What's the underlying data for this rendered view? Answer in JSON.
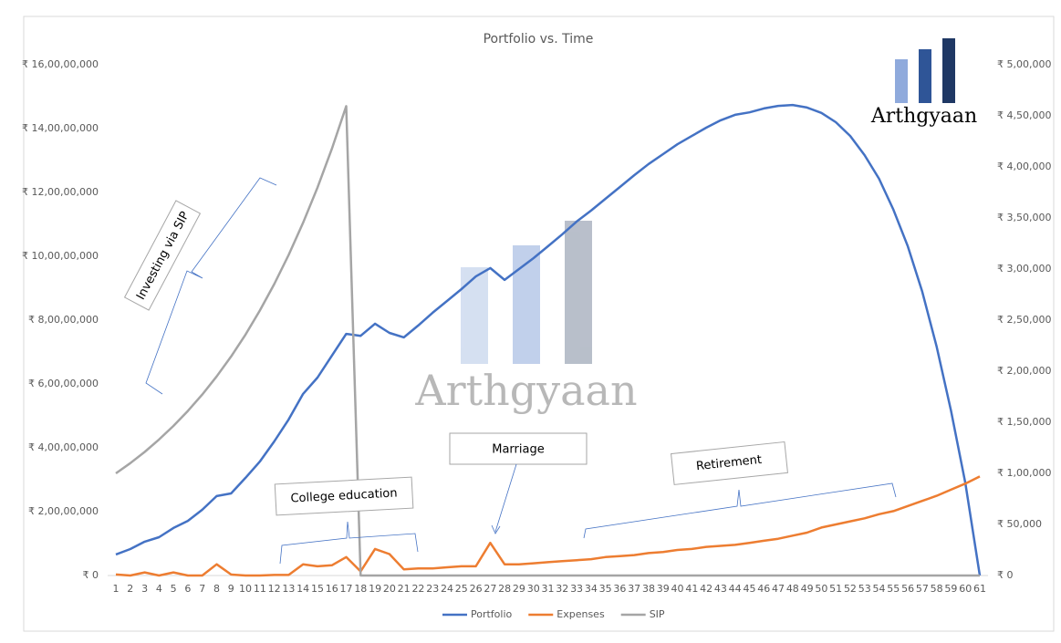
{
  "chart_data": {
    "type": "line",
    "title": "Portfolio vs. Time",
    "categories": [
      1,
      2,
      3,
      4,
      5,
      6,
      7,
      8,
      9,
      10,
      11,
      12,
      13,
      14,
      15,
      16,
      17,
      18,
      19,
      20,
      21,
      22,
      23,
      24,
      25,
      26,
      27,
      28,
      29,
      30,
      31,
      32,
      33,
      34,
      35,
      36,
      37,
      38,
      39,
      40,
      41,
      42,
      43,
      44,
      45,
      46,
      47,
      48,
      49,
      50,
      51,
      52,
      53,
      54,
      55,
      56,
      57,
      58,
      59,
      60,
      61
    ],
    "series": [
      {
        "name": "Portfolio",
        "color": "#4472c4",
        "values": [
          6600000,
          8300000,
          10600000,
          12000000,
          14900000,
          17100000,
          20600000,
          24900000,
          25700000,
          30600000,
          35700000,
          42000000,
          48900000,
          56900000,
          62000000,
          68900000,
          75700000,
          75100000,
          78900000,
          76000000,
          74600000,
          78300000,
          82300000,
          86000000,
          89700000,
          93700000,
          96300000,
          92600000,
          96000000,
          99400000,
          103100000,
          106900000,
          110900000,
          114300000,
          118000000,
          121700000,
          125400000,
          128900000,
          132000000,
          135100000,
          137700000,
          140300000,
          142600000,
          144300000,
          145100000,
          146300000,
          147100000,
          147400000,
          146600000,
          144900000,
          142000000,
          137700000,
          131700000,
          124300000,
          114600000,
          103100000,
          88900000,
          71700000,
          51700000,
          28900000,
          0
        ]
      },
      {
        "name": "Expenses",
        "color": "#ed7d31",
        "axis": "y2",
        "values": [
          1000,
          0,
          3000,
          0,
          3000,
          0,
          0,
          11000,
          1000,
          0,
          0,
          500,
          500,
          11000,
          9000,
          10000,
          18000,
          4000,
          26000,
          21000,
          6000,
          7000,
          7000,
          8000,
          9000,
          9000,
          32000,
          11000,
          11000,
          12000,
          13000,
          14000,
          15000,
          16000,
          18000,
          19000,
          20000,
          22000,
          23000,
          25000,
          26000,
          28000,
          29000,
          30000,
          32000,
          34000,
          36000,
          39000,
          42000,
          47000,
          50000,
          53000,
          56000,
          60000,
          63000,
          68000,
          73000,
          78000,
          84000,
          90000,
          97000
        ]
      },
      {
        "name": "SIP",
        "color": "#a5a5a5",
        "axis": "y2",
        "values": [
          100000,
          110000,
          121000,
          133100,
          146410,
          161051,
          177156,
          194872,
          214359,
          235795,
          259374,
          285312,
          313843,
          345227,
          379750,
          417725,
          459497,
          0,
          0,
          0,
          0,
          0,
          0,
          0,
          0,
          0,
          0,
          0,
          0,
          0,
          0,
          0,
          0,
          0,
          0,
          0,
          0,
          0,
          0,
          0,
          0,
          0,
          0,
          0,
          0,
          0,
          0,
          0,
          0,
          0,
          0,
          0,
          0,
          0,
          0,
          0,
          0,
          0,
          0,
          0,
          0
        ]
      }
    ],
    "ylim": [
      0,
      160000000
    ],
    "yticks": [
      {
        "value": 0,
        "label": "₹ 0"
      },
      {
        "value": 20000000,
        "label": "₹ 2,00,00,000"
      },
      {
        "value": 40000000,
        "label": "₹ 4,00,00,000"
      },
      {
        "value": 60000000,
        "label": "₹ 6,00,00,000"
      },
      {
        "value": 80000000,
        "label": "₹ 8,00,00,000"
      },
      {
        "value": 100000000,
        "label": "₹ 10,00,00,000"
      },
      {
        "value": 120000000,
        "label": "₹ 12,00,00,000"
      },
      {
        "value": 140000000,
        "label": "₹ 14,00,00,000"
      },
      {
        "value": 160000000,
        "label": "₹ 16,00,00,000"
      }
    ],
    "y2lim": [
      0,
      500000
    ],
    "y2ticks": [
      {
        "value": 0,
        "label": "₹ 0"
      },
      {
        "value": 50000,
        "label": "₹ 50,000"
      },
      {
        "value": 100000,
        "label": "₹ 1,00,000"
      },
      {
        "value": 150000,
        "label": "₹ 1,50,000"
      },
      {
        "value": 200000,
        "label": "₹ 2,00,000"
      },
      {
        "value": 250000,
        "label": "₹ 2,50,000"
      },
      {
        "value": 300000,
        "label": "₹ 3,00,000"
      },
      {
        "value": 350000,
        "label": "₹ 3,50,000"
      },
      {
        "value": 400000,
        "label": "₹ 4,00,000"
      },
      {
        "value": 450000,
        "label": "₹ 4,50,000"
      },
      {
        "value": 500000,
        "label": "₹ 5,00,000"
      }
    ],
    "grid": false,
    "legend": "bottom",
    "annotations": [
      "Investing via SIP",
      "College education",
      "Marriage",
      "Retirement"
    ],
    "watermark": "Arthgyaan",
    "logo_text": "Arthgyaan"
  }
}
